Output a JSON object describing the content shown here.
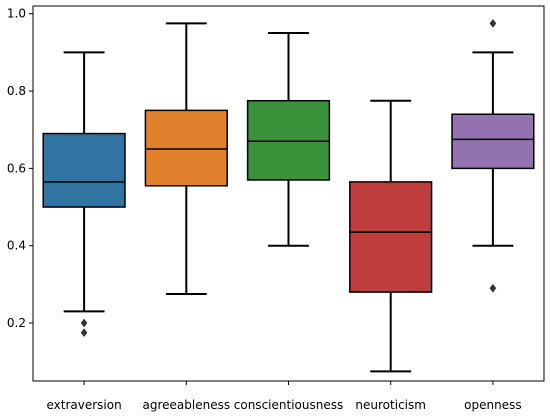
{
  "chart_data": {
    "type": "box",
    "title": "",
    "xlabel": "",
    "ylabel": "",
    "ylim": [
      0.05,
      1.02
    ],
    "yticks": [
      0.2,
      0.4,
      0.6,
      0.8,
      1.0
    ],
    "ytick_labels": [
      "0.2",
      "0.4",
      "0.6",
      "0.8",
      "1.0"
    ],
    "categories": [
      "extraversion",
      "agreeableness",
      "conscientiousness",
      "neuroticism",
      "openness"
    ],
    "boxes": [
      {
        "q1": 0.5,
        "median": 0.565,
        "q3": 0.69,
        "whisker_low": 0.23,
        "whisker_high": 0.9,
        "outliers": [
          0.2,
          0.175
        ],
        "color": "#3274a1"
      },
      {
        "q1": 0.555,
        "median": 0.65,
        "q3": 0.75,
        "whisker_low": 0.275,
        "whisker_high": 0.975,
        "outliers": [],
        "color": "#e1812c"
      },
      {
        "q1": 0.57,
        "median": 0.67,
        "q3": 0.775,
        "whisker_low": 0.4,
        "whisker_high": 0.95,
        "outliers": [],
        "color": "#3a923a"
      },
      {
        "q1": 0.28,
        "median": 0.435,
        "q3": 0.565,
        "whisker_low": 0.075,
        "whisker_high": 0.775,
        "outliers": [],
        "color": "#c03d3e"
      },
      {
        "q1": 0.6,
        "median": 0.675,
        "q3": 0.74,
        "whisker_low": 0.4,
        "whisker_high": 0.9,
        "outliers": [
          0.975,
          0.29
        ],
        "color": "#9372b2"
      }
    ],
    "grid": false,
    "legend": "none"
  }
}
